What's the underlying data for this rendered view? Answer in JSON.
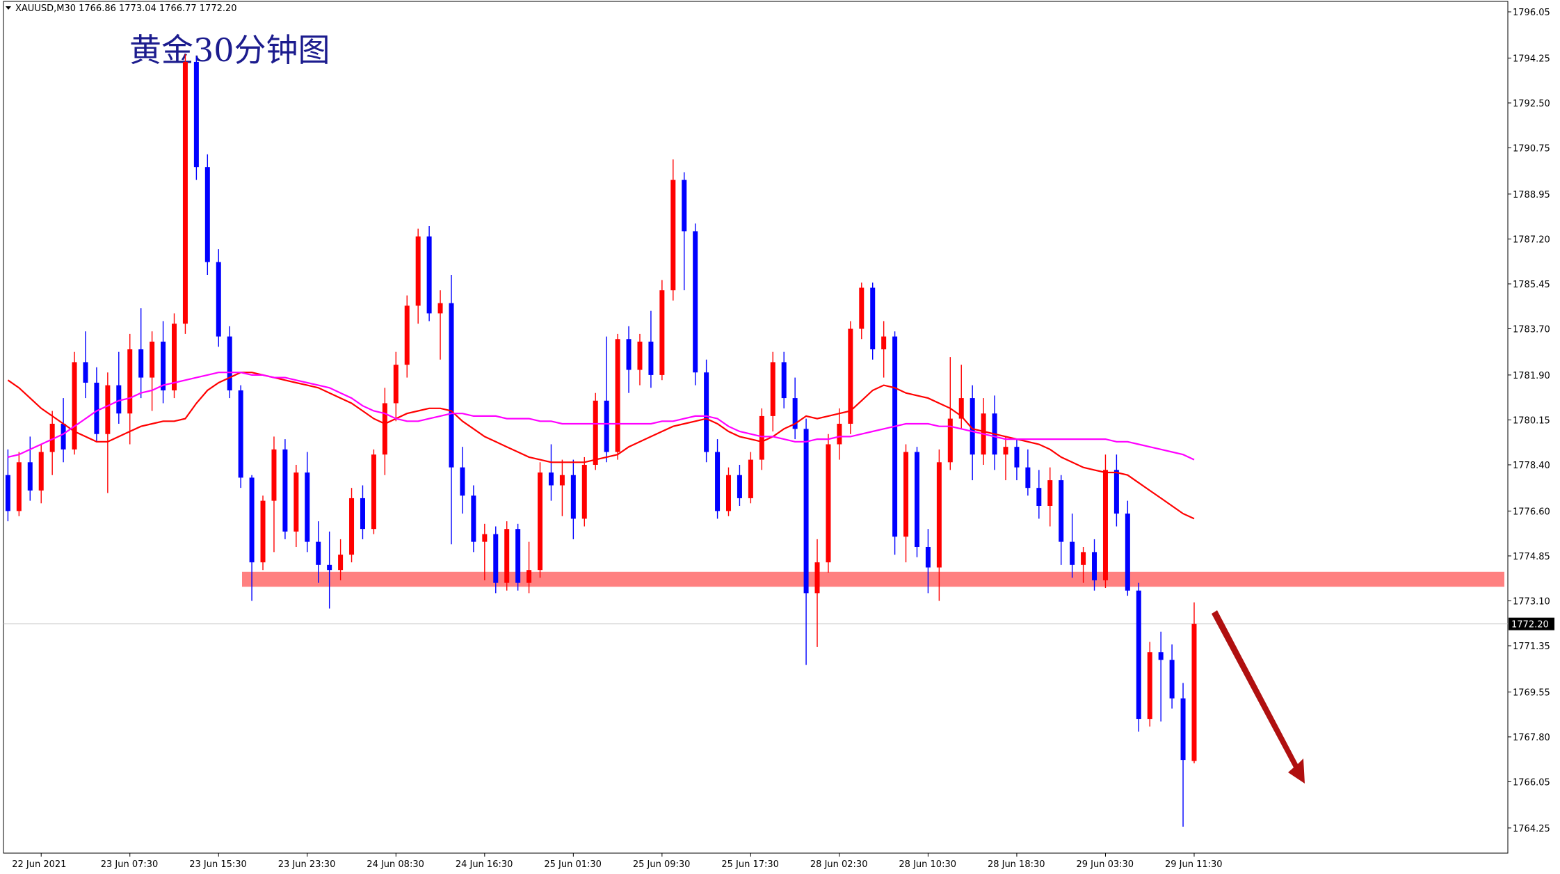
{
  "chart_data": {
    "type": "candlestick",
    "header": "XAUUSD,M30  1766.86 1773.04 1766.77 1772.20",
    "title": "黄金30分钟图",
    "up_color": "#ff0000",
    "down_color": "#0000ff",
    "ylim": [
      1763.27,
      1796.43
    ],
    "yticks": [
      {
        "value": 1764.25,
        "label": "1764.25"
      },
      {
        "value": 1766.05,
        "label": "1766.05"
      },
      {
        "value": 1767.8,
        "label": "1767.80"
      },
      {
        "value": 1769.55,
        "label": "1769.55"
      },
      {
        "value": 1771.35,
        "label": "1771.35"
      },
      {
        "value": 1773.1,
        "label": "1773.10"
      },
      {
        "value": 1774.85,
        "label": "1774.85"
      },
      {
        "value": 1776.6,
        "label": "1776.60"
      },
      {
        "value": 1778.4,
        "label": "1778.40"
      },
      {
        "value": 1780.15,
        "label": "1780.15"
      },
      {
        "value": 1781.9,
        "label": "1781.90"
      },
      {
        "value": 1783.7,
        "label": "1783.70"
      },
      {
        "value": 1785.45,
        "label": "1785.45"
      },
      {
        "value": 1787.2,
        "label": "1787.20"
      },
      {
        "value": 1788.95,
        "label": "1788.95"
      },
      {
        "value": 1790.75,
        "label": "1790.75"
      },
      {
        "value": 1792.5,
        "label": "1792.50"
      },
      {
        "value": 1794.25,
        "label": "1794.25"
      },
      {
        "value": 1796.05,
        "label": "1796.05"
      }
    ],
    "current_price": {
      "value": 1772.2,
      "label": "1772.20",
      "color": "#c0c0c0"
    },
    "support_zone": {
      "range": [
        1773.65,
        1774.23
      ],
      "color": "#ff8080"
    },
    "categories": [
      null,
      null,
      null,
      "22 Jun 2021",
      null,
      null,
      null,
      null,
      null,
      null,
      null,
      "23 Jun 07:30",
      null,
      null,
      null,
      null,
      null,
      null,
      null,
      "23 Jun 15:30",
      null,
      null,
      null,
      null,
      null,
      null,
      null,
      "23 Jun 23:30",
      null,
      null,
      null,
      null,
      null,
      null,
      null,
      "24 Jun 08:30",
      null,
      null,
      null,
      null,
      null,
      null,
      null,
      "24 Jun 16:30",
      null,
      null,
      null,
      null,
      null,
      null,
      null,
      "25 Jun 01:30",
      null,
      null,
      null,
      null,
      null,
      null,
      null,
      "25 Jun 09:30",
      null,
      null,
      null,
      null,
      null,
      null,
      null,
      "25 Jun 17:30",
      null,
      null,
      null,
      null,
      null,
      null,
      null,
      "28 Jun 02:30",
      null,
      null,
      null,
      null,
      null,
      null,
      null,
      "28 Jun 10:30",
      null,
      null,
      null,
      null,
      null,
      null,
      null,
      "28 Jun 18:30",
      null,
      null,
      null,
      null,
      null,
      null,
      null,
      "29 Jun 03:30",
      null,
      null,
      null,
      null,
      null,
      null,
      null,
      "29 Jun 11:30"
    ],
    "ohlc": [
      [
        1778.0,
        1779.0,
        1776.2,
        1776.6
      ],
      [
        1776.6,
        1778.9,
        1776.4,
        1778.5
      ],
      [
        1778.5,
        1779.5,
        1777.0,
        1777.4
      ],
      [
        1777.4,
        1779.2,
        1776.9,
        1778.9
      ],
      [
        1778.9,
        1780.5,
        1778.0,
        1780.0
      ],
      [
        1780.0,
        1781.0,
        1778.5,
        1779.0
      ],
      [
        1779.0,
        1782.8,
        1778.8,
        1782.4
      ],
      [
        1782.4,
        1783.6,
        1781.0,
        1781.6
      ],
      [
        1781.6,
        1782.2,
        1779.3,
        1779.6
      ],
      [
        1779.6,
        1782.0,
        1777.3,
        1781.5
      ],
      [
        1781.5,
        1782.8,
        1780.0,
        1780.4
      ],
      [
        1780.4,
        1783.5,
        1779.2,
        1782.9
      ],
      [
        1782.9,
        1784.5,
        1781.0,
        1781.8
      ],
      [
        1781.8,
        1783.6,
        1780.5,
        1783.2
      ],
      [
        1783.2,
        1784.0,
        1780.8,
        1781.3
      ],
      [
        1781.3,
        1784.3,
        1781.0,
        1783.9
      ],
      [
        1783.9,
        1794.4,
        1783.5,
        1794.1
      ],
      [
        1794.1,
        1794.3,
        1789.5,
        1790.0
      ],
      [
        1790.0,
        1790.5,
        1785.8,
        1786.3
      ],
      [
        1786.3,
        1786.8,
        1783.0,
        1783.4
      ],
      [
        1783.4,
        1783.8,
        1781.0,
        1781.3
      ],
      [
        1781.3,
        1781.5,
        1777.5,
        1777.9
      ],
      [
        1777.9,
        1778.0,
        1773.1,
        1774.6
      ],
      [
        1774.6,
        1777.2,
        1774.3,
        1777.0
      ],
      [
        1777.0,
        1779.5,
        1775.0,
        1779.0
      ],
      [
        1779.0,
        1779.4,
        1775.5,
        1775.8
      ],
      [
        1775.8,
        1778.4,
        1775.2,
        1778.1
      ],
      [
        1778.1,
        1778.9,
        1775.0,
        1775.4
      ],
      [
        1775.4,
        1776.2,
        1773.8,
        1774.5
      ],
      [
        1774.5,
        1775.8,
        1772.8,
        1774.3
      ],
      [
        1774.3,
        1775.5,
        1773.9,
        1774.9
      ],
      [
        1774.9,
        1777.5,
        1774.6,
        1777.1
      ],
      [
        1777.1,
        1777.6,
        1775.5,
        1775.9
      ],
      [
        1775.9,
        1779.0,
        1775.7,
        1778.8
      ],
      [
        1778.8,
        1781.4,
        1778.0,
        1780.8
      ],
      [
        1780.8,
        1782.8,
        1780.1,
        1782.3
      ],
      [
        1782.3,
        1785.0,
        1781.8,
        1784.6
      ],
      [
        1784.6,
        1787.6,
        1783.9,
        1787.3
      ],
      [
        1787.3,
        1787.7,
        1784.0,
        1784.3
      ],
      [
        1784.3,
        1785.2,
        1782.5,
        1784.7
      ],
      [
        1784.7,
        1785.8,
        1775.3,
        1778.3
      ],
      [
        1778.3,
        1779.1,
        1776.5,
        1777.2
      ],
      [
        1777.2,
        1777.6,
        1775.0,
        1775.4
      ],
      [
        1775.4,
        1776.1,
        1773.9,
        1775.7
      ],
      [
        1775.7,
        1776.0,
        1773.4,
        1773.8
      ],
      [
        1773.8,
        1776.2,
        1773.5,
        1775.9
      ],
      [
        1775.9,
        1776.1,
        1773.5,
        1773.8
      ],
      [
        1773.8,
        1775.4,
        1773.4,
        1774.3
      ],
      [
        1774.3,
        1778.5,
        1774.0,
        1778.1
      ],
      [
        1778.1,
        1779.2,
        1777.0,
        1777.6
      ],
      [
        1777.6,
        1778.6,
        1776.4,
        1778.0
      ],
      [
        1778.0,
        1778.6,
        1775.5,
        1776.3
      ],
      [
        1776.3,
        1778.7,
        1776.0,
        1778.4
      ],
      [
        1778.4,
        1781.2,
        1778.2,
        1780.9
      ],
      [
        1780.9,
        1783.4,
        1778.5,
        1778.9
      ],
      [
        1778.9,
        1783.5,
        1778.6,
        1783.3
      ],
      [
        1783.3,
        1783.8,
        1781.2,
        1782.1
      ],
      [
        1782.1,
        1783.5,
        1781.5,
        1783.2
      ],
      [
        1783.2,
        1784.4,
        1781.4,
        1781.9
      ],
      [
        1781.9,
        1785.6,
        1781.7,
        1785.2
      ],
      [
        1785.2,
        1790.3,
        1784.8,
        1789.5
      ],
      [
        1789.5,
        1789.8,
        1785.2,
        1787.5
      ],
      [
        1787.5,
        1787.8,
        1781.5,
        1782.0
      ],
      [
        1782.0,
        1782.5,
        1778.5,
        1778.9
      ],
      [
        1778.9,
        1779.4,
        1776.3,
        1776.6
      ],
      [
        1776.6,
        1778.3,
        1776.4,
        1778.0
      ],
      [
        1778.0,
        1778.4,
        1776.8,
        1777.1
      ],
      [
        1777.1,
        1778.9,
        1776.9,
        1778.6
      ],
      [
        1778.6,
        1780.6,
        1778.2,
        1780.3
      ],
      [
        1780.3,
        1782.8,
        1779.7,
        1782.4
      ],
      [
        1782.4,
        1782.8,
        1780.6,
        1781.0
      ],
      [
        1781.0,
        1781.8,
        1779.4,
        1779.8
      ],
      [
        1779.8,
        1780.2,
        1770.6,
        1773.4
      ],
      [
        1773.4,
        1775.5,
        1771.3,
        1774.6
      ],
      [
        1774.6,
        1779.6,
        1774.2,
        1779.2
      ],
      [
        1779.2,
        1780.6,
        1778.6,
        1780.0
      ],
      [
        1780.0,
        1784.0,
        1779.6,
        1783.7
      ],
      [
        1783.7,
        1785.5,
        1783.3,
        1785.3
      ],
      [
        1785.3,
        1785.5,
        1782.5,
        1782.9
      ],
      [
        1782.9,
        1784.0,
        1781.8,
        1783.4
      ],
      [
        1783.4,
        1783.6,
        1774.9,
        1775.6
      ],
      [
        1775.6,
        1779.2,
        1774.6,
        1778.9
      ],
      [
        1778.9,
        1779.1,
        1774.8,
        1775.2
      ],
      [
        1775.2,
        1775.9,
        1773.4,
        1774.4
      ],
      [
        1774.4,
        1779.0,
        1773.1,
        1778.5
      ],
      [
        1778.5,
        1782.6,
        1778.2,
        1780.2
      ],
      [
        1780.2,
        1782.3,
        1779.8,
        1781.0
      ],
      [
        1781.0,
        1781.5,
        1777.8,
        1778.8
      ],
      [
        1778.8,
        1781.0,
        1778.4,
        1780.4
      ],
      [
        1780.4,
        1781.1,
        1778.2,
        1778.8
      ],
      [
        1778.8,
        1779.5,
        1777.8,
        1779.1
      ],
      [
        1779.1,
        1779.4,
        1777.8,
        1778.3
      ],
      [
        1778.3,
        1779.0,
        1777.2,
        1777.5
      ],
      [
        1777.5,
        1778.2,
        1776.3,
        1776.8
      ],
      [
        1776.8,
        1778.3,
        1776.0,
        1777.8
      ],
      [
        1777.8,
        1778.0,
        1774.5,
        1775.4
      ],
      [
        1775.4,
        1776.5,
        1774.0,
        1774.5
      ],
      [
        1774.5,
        1775.2,
        1773.8,
        1775.0
      ],
      [
        1775.0,
        1775.5,
        1773.5,
        1773.9
      ],
      [
        1773.9,
        1778.8,
        1773.6,
        1778.2
      ],
      [
        1778.2,
        1778.8,
        1776.0,
        1776.5
      ],
      [
        1776.5,
        1777.0,
        1773.3,
        1773.5
      ],
      [
        1773.5,
        1773.8,
        1768.0,
        1768.5
      ],
      [
        1768.5,
        1771.5,
        1768.2,
        1771.1
      ],
      [
        1771.1,
        1771.9,
        1768.4,
        1770.8
      ],
      [
        1770.8,
        1771.4,
        1768.9,
        1769.3
      ],
      [
        1769.3,
        1769.9,
        1764.3,
        1766.9
      ],
      [
        1766.86,
        1773.04,
        1766.77,
        1772.2
      ]
    ],
    "lines": [
      {
        "color": "#ff0000",
        "values": [
          1781.7,
          1781.4,
          1781.0,
          1780.6,
          1780.3,
          1780.0,
          1779.7,
          1779.5,
          1779.3,
          1779.3,
          1779.5,
          1779.7,
          1779.9,
          1780.0,
          1780.1,
          1780.1,
          1780.2,
          1780.8,
          1781.3,
          1781.6,
          1781.8,
          1782.0,
          1782.0,
          1781.9,
          1781.8,
          1781.7,
          1781.6,
          1781.5,
          1781.4,
          1781.2,
          1781.0,
          1780.8,
          1780.5,
          1780.2,
          1780.0,
          1780.2,
          1780.4,
          1780.5,
          1780.6,
          1780.6,
          1780.5,
          1780.1,
          1779.8,
          1779.5,
          1779.3,
          1779.1,
          1778.9,
          1778.7,
          1778.6,
          1778.5,
          1778.5,
          1778.5,
          1778.5,
          1778.6,
          1778.7,
          1778.8,
          1779.1,
          1779.3,
          1779.5,
          1779.7,
          1779.9,
          1780.0,
          1780.1,
          1780.2,
          1780.0,
          1779.7,
          1779.5,
          1779.4,
          1779.3,
          1779.5,
          1779.8,
          1780.0,
          1780.3,
          1780.2,
          1780.3,
          1780.4,
          1780.5,
          1780.9,
          1781.3,
          1781.5,
          1781.4,
          1781.2,
          1781.1,
          1781.0,
          1780.8,
          1780.6,
          1780.3,
          1779.8,
          1779.7,
          1779.6,
          1779.5,
          1779.4,
          1779.3,
          1779.2,
          1779.0,
          1778.7,
          1778.5,
          1778.3,
          1778.2,
          1778.1,
          1778.1,
          1778.0,
          1777.7,
          1777.4,
          1777.1,
          1776.8,
          1776.5,
          1776.3
        ]
      },
      {
        "color": "#ff00ff",
        "values": [
          1778.7,
          1778.8,
          1779.0,
          1779.2,
          1779.4,
          1779.6,
          1779.9,
          1780.2,
          1780.5,
          1780.7,
          1780.9,
          1781.0,
          1781.2,
          1781.3,
          1781.5,
          1781.6,
          1781.7,
          1781.8,
          1781.9,
          1782.0,
          1782.0,
          1782.0,
          1781.9,
          1781.9,
          1781.8,
          1781.8,
          1781.7,
          1781.6,
          1781.5,
          1781.4,
          1781.2,
          1781.0,
          1780.7,
          1780.5,
          1780.4,
          1780.2,
          1780.1,
          1780.1,
          1780.2,
          1780.3,
          1780.4,
          1780.4,
          1780.3,
          1780.3,
          1780.3,
          1780.2,
          1780.2,
          1780.2,
          1780.1,
          1780.1,
          1780.0,
          1780.0,
          1780.0,
          1780.0,
          1780.0,
          1780.0,
          1780.0,
          1780.0,
          1780.0,
          1780.1,
          1780.1,
          1780.2,
          1780.3,
          1780.3,
          1780.2,
          1779.9,
          1779.7,
          1779.6,
          1779.5,
          1779.5,
          1779.4,
          1779.3,
          1779.3,
          1779.4,
          1779.4,
          1779.5,
          1779.5,
          1779.6,
          1779.7,
          1779.8,
          1779.9,
          1780.0,
          1780.0,
          1780.0,
          1779.9,
          1779.9,
          1779.8,
          1779.7,
          1779.6,
          1779.5,
          1779.4,
          1779.4,
          1779.4,
          1779.4,
          1779.4,
          1779.4,
          1779.4,
          1779.4,
          1779.4,
          1779.4,
          1779.3,
          1779.3,
          1779.2,
          1779.1,
          1779.0,
          1778.9,
          1778.8,
          1778.6
        ]
      }
    ]
  }
}
